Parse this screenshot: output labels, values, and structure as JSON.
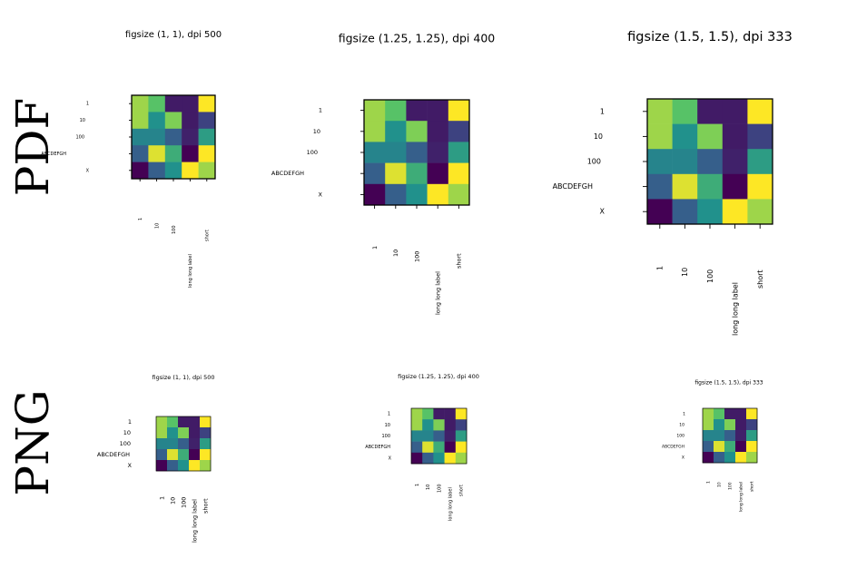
{
  "row_labels": [
    "PDF",
    "PNG"
  ],
  "chart_data": [
    {
      "type": "heatmap",
      "format": "PDF",
      "title": "figsize (1, 1), dpi 500",
      "xticklabels": [
        "1",
        "10",
        "100",
        "long long label",
        "short"
      ],
      "yticklabels": [
        "1",
        "10",
        "100",
        "ABCDEFGH",
        "X"
      ],
      "colormap": "viridis",
      "values": [
        [
          0.85,
          0.72,
          0.08,
          0.08,
          1.0
        ],
        [
          0.85,
          0.5,
          0.8,
          0.08,
          0.2
        ],
        [
          0.45,
          0.45,
          0.3,
          0.1,
          0.55
        ],
        [
          0.3,
          0.95,
          0.62,
          0.0,
          1.0
        ],
        [
          0.0,
          0.3,
          0.5,
          1.0,
          0.85
        ]
      ]
    },
    {
      "type": "heatmap",
      "format": "PDF",
      "title": "figsize (1.25, 1.25), dpi 400",
      "xticklabels": [
        "1",
        "10",
        "100",
        "long long label",
        "short"
      ],
      "yticklabels": [
        "1",
        "10",
        "100",
        "ABCDEFGH",
        "X"
      ],
      "colormap": "viridis",
      "values": [
        [
          0.85,
          0.72,
          0.08,
          0.08,
          1.0
        ],
        [
          0.85,
          0.5,
          0.8,
          0.08,
          0.2
        ],
        [
          0.45,
          0.45,
          0.3,
          0.1,
          0.55
        ],
        [
          0.3,
          0.95,
          0.62,
          0.0,
          1.0
        ],
        [
          0.0,
          0.3,
          0.5,
          1.0,
          0.85
        ]
      ]
    },
    {
      "type": "heatmap",
      "format": "PDF",
      "title": "figsize (1.5, 1.5), dpi 333",
      "xticklabels": [
        "1",
        "10",
        "100",
        "long long label",
        "short"
      ],
      "yticklabels": [
        "1",
        "10",
        "100",
        "ABCDEFGH",
        "X"
      ],
      "colormap": "viridis",
      "values": [
        [
          0.85,
          0.72,
          0.08,
          0.08,
          1.0
        ],
        [
          0.85,
          0.5,
          0.8,
          0.08,
          0.2
        ],
        [
          0.45,
          0.45,
          0.3,
          0.1,
          0.55
        ],
        [
          0.3,
          0.95,
          0.62,
          0.0,
          1.0
        ],
        [
          0.0,
          0.3,
          0.5,
          1.0,
          0.85
        ]
      ]
    },
    {
      "type": "heatmap",
      "format": "PNG",
      "title": "figsize (1, 1), dpi 500",
      "xticklabels": [
        "1",
        "10",
        "100",
        "long long label",
        "short"
      ],
      "yticklabels": [
        "1",
        "10",
        "100",
        "ABCDEFGH",
        "X"
      ],
      "colormap": "viridis",
      "values": [
        [
          0.85,
          0.72,
          0.08,
          0.08,
          1.0
        ],
        [
          0.85,
          0.5,
          0.8,
          0.08,
          0.2
        ],
        [
          0.45,
          0.45,
          0.3,
          0.1,
          0.55
        ],
        [
          0.3,
          0.95,
          0.62,
          0.0,
          1.0
        ],
        [
          0.0,
          0.3,
          0.5,
          1.0,
          0.85
        ]
      ]
    },
    {
      "type": "heatmap",
      "format": "PNG",
      "title": "figsize (1.25, 1.25), dpi 400",
      "xticklabels": [
        "1",
        "10",
        "100",
        "long long label",
        "short"
      ],
      "yticklabels": [
        "1",
        "10",
        "100",
        "ABCDEFGH",
        "X"
      ],
      "colormap": "viridis",
      "values": [
        [
          0.85,
          0.72,
          0.08,
          0.08,
          1.0
        ],
        [
          0.85,
          0.5,
          0.8,
          0.08,
          0.2
        ],
        [
          0.45,
          0.45,
          0.3,
          0.1,
          0.55
        ],
        [
          0.3,
          0.95,
          0.62,
          0.0,
          1.0
        ],
        [
          0.0,
          0.3,
          0.5,
          1.0,
          0.85
        ]
      ]
    },
    {
      "type": "heatmap",
      "format": "PNG",
      "title": "figsize (1.5, 1.5), dpi 333",
      "xticklabels": [
        "1",
        "10",
        "100",
        "long long label",
        "short"
      ],
      "yticklabels": [
        "1",
        "10",
        "100",
        "ABCDEFGH",
        "X"
      ],
      "colormap": "viridis",
      "values": [
        [
          0.85,
          0.72,
          0.08,
          0.08,
          1.0
        ],
        [
          0.85,
          0.5,
          0.8,
          0.08,
          0.2
        ],
        [
          0.45,
          0.45,
          0.3,
          0.1,
          0.55
        ],
        [
          0.3,
          0.95,
          0.62,
          0.0,
          1.0
        ],
        [
          0.0,
          0.3,
          0.5,
          1.0,
          0.85
        ]
      ]
    }
  ]
}
